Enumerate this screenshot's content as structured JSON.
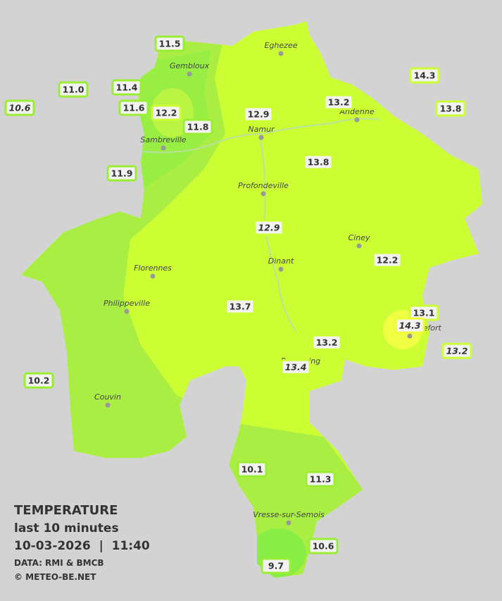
{
  "title": {
    "heading": "TEMPERATURE",
    "subtitle": "last 10 minutes",
    "timestamp": "10-03-2026  |  11:40",
    "source": "DATA: RMI & BMCB",
    "copyright": "© METEO-BE.NET"
  },
  "cities": [
    "Gembloux",
    "Eghezee",
    "Andenne",
    "Namur",
    "Sambreville",
    "Profondeville",
    "Ciney",
    "Dinant",
    "Florennes",
    "Philippeville",
    "Rochefort",
    "Beauraing",
    "Couvin",
    "Vresse-sur-Semois"
  ],
  "stations": [
    {
      "temp": "11.5",
      "italic": false,
      "border": "#99ee33"
    },
    {
      "temp": "11.0",
      "italic": false,
      "border": "#99ee33"
    },
    {
      "temp": "10.6",
      "italic": true,
      "border": "#99ee33"
    },
    {
      "temp": "11.4",
      "italic": false,
      "border": "#99ee33"
    },
    {
      "temp": "11.6",
      "italic": false,
      "border": "#99ee33"
    },
    {
      "temp": "12.2",
      "italic": false,
      "border": "#ccff33"
    },
    {
      "temp": "11.8",
      "italic": false,
      "border": "#99ee33"
    },
    {
      "temp": "12.9",
      "italic": false,
      "border": "#ccff33"
    },
    {
      "temp": "13.2",
      "italic": false,
      "border": "#ccff33"
    },
    {
      "temp": "14.3",
      "italic": false,
      "border": "#ccff33"
    },
    {
      "temp": "13.8",
      "italic": false,
      "border": "#ccff33"
    },
    {
      "temp": "11.9",
      "italic": false,
      "border": "#99ee33"
    },
    {
      "temp": "13.8",
      "italic": false,
      "border": "#ccff33"
    },
    {
      "temp": "12.9",
      "italic": true,
      "border": "#ccff33"
    },
    {
      "temp": "12.2",
      "italic": false,
      "border": "#ccff33"
    },
    {
      "temp": "13.7",
      "italic": false,
      "border": "#ccff33"
    },
    {
      "temp": "13.1",
      "italic": false,
      "border": "#ccff33"
    },
    {
      "temp": "14.3",
      "italic": true,
      "border": "#eeff33"
    },
    {
      "temp": "13.2",
      "italic": false,
      "border": "#ccff33"
    },
    {
      "temp": "13.2",
      "italic": true,
      "border": "#ccff33"
    },
    {
      "temp": "13.4",
      "italic": true,
      "border": "#ccff33"
    },
    {
      "temp": "10.2",
      "italic": false,
      "border": "#99ee33"
    },
    {
      "temp": "10.1",
      "italic": false,
      "border": "#99ee33"
    },
    {
      "temp": "11.3",
      "italic": false,
      "border": "#99ee33"
    },
    {
      "temp": "10.6",
      "italic": false,
      "border": "#99ee33"
    },
    {
      "temp": "9.7",
      "italic": false,
      "border": "#99ee33"
    }
  ]
}
